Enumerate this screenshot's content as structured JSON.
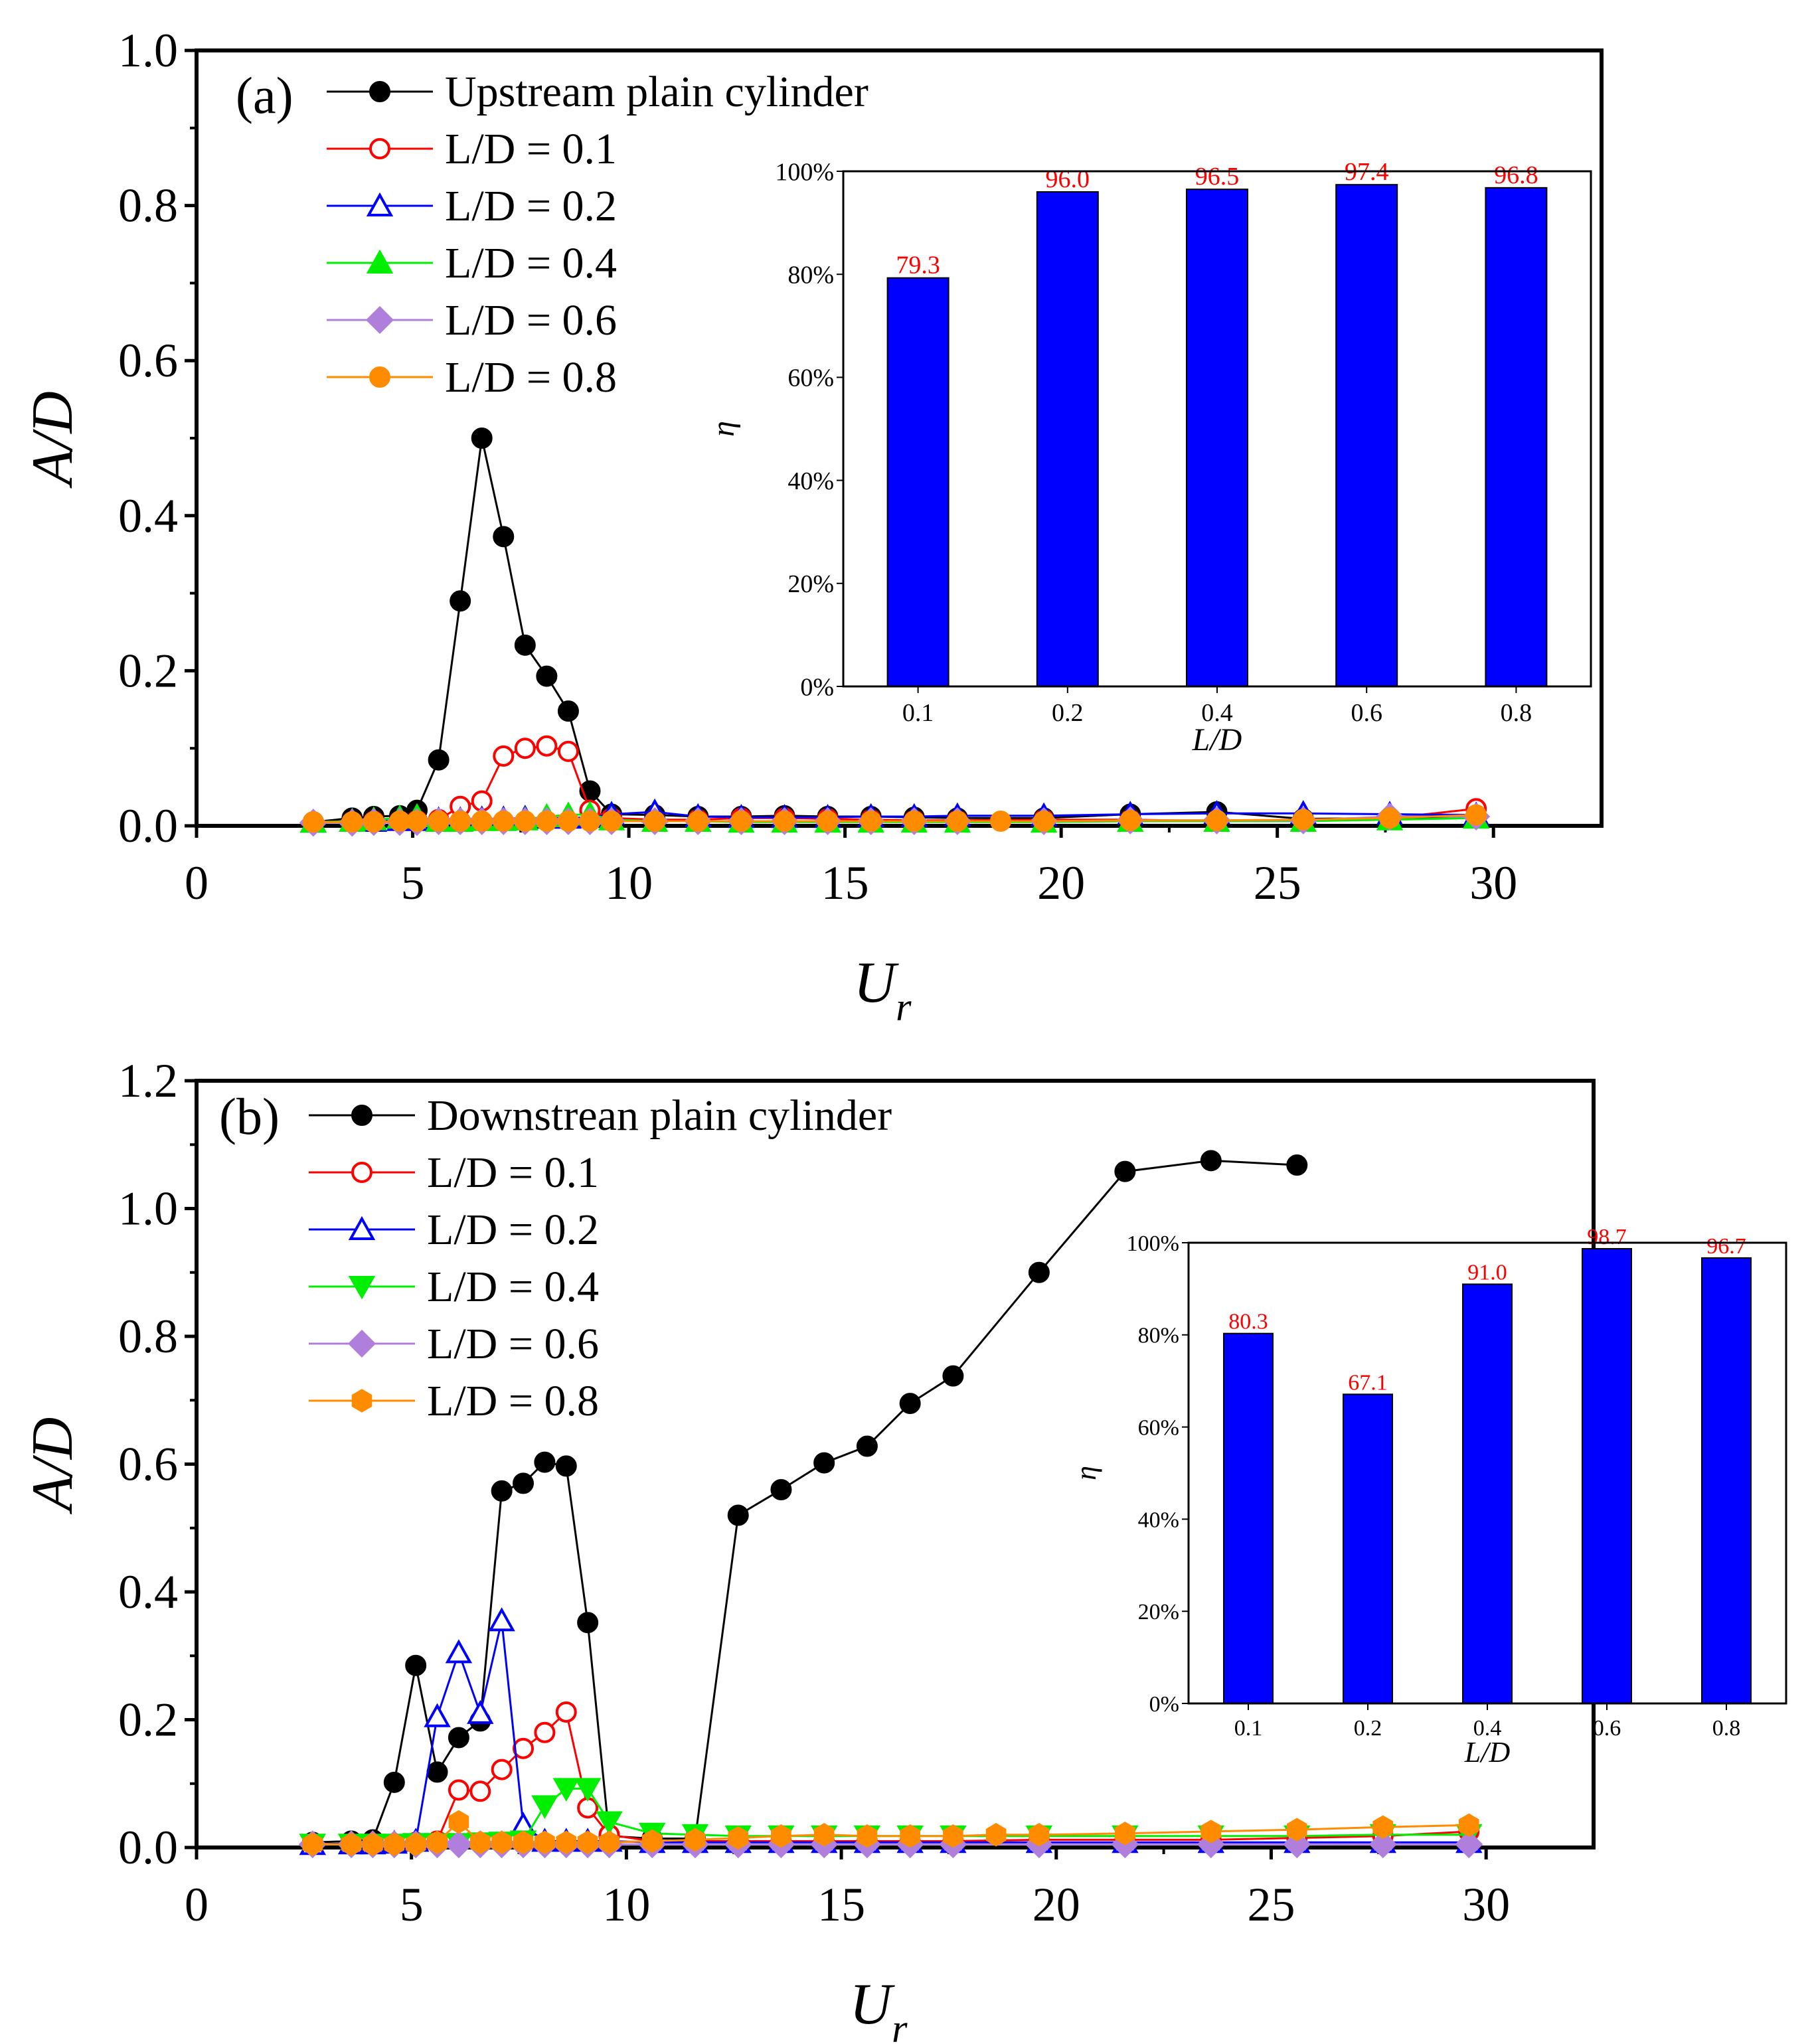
{
  "colors": {
    "plain": "#000000",
    "ld01": "#ff0000",
    "ld02": "#0000ff",
    "ld04": "#00ee00",
    "ld06": "#b07fdc",
    "ld08": "#ff8c00",
    "bar": "#0000ff",
    "barlabel": "#ff0000"
  },
  "chart_data": [
    {
      "id": "a",
      "type": "line",
      "panel_label": "(a)",
      "xlabel": "U",
      "xlabel_sub": "r",
      "ylabel": "A/D",
      "xlim": [
        0,
        32.5
      ],
      "ylim": [
        0,
        1.0
      ],
      "xticks": [
        "0",
        "5",
        "10",
        "15",
        "20",
        "25",
        "30"
      ],
      "yticks": [
        "0.0",
        "0.2",
        "0.4",
        "0.6",
        "0.8",
        "1.0"
      ],
      "series": [
        {
          "key": "plain",
          "name": "Upstream plain cylinder",
          "marker": "circle-filled",
          "color": "#000000",
          "x": [
            2.7,
            3.6,
            4.1,
            4.7,
            5.1,
            5.6,
            6.1,
            6.6,
            7.1,
            7.6,
            8.1,
            8.6,
            9.1,
            9.6,
            10.6,
            11.6,
            12.6,
            13.6,
            14.6,
            15.6,
            16.6,
            17.6,
            19.6,
            21.6,
            23.6,
            25.6,
            27.6,
            29.6
          ],
          "y": [
            0.005,
            0.01,
            0.012,
            0.013,
            0.02,
            0.085,
            0.29,
            0.5,
            0.373,
            0.233,
            0.193,
            0.148,
            0.045,
            0.015,
            0.014,
            0.012,
            0.012,
            0.013,
            0.012,
            0.012,
            0.011,
            0.01,
            0.01,
            0.015,
            0.018,
            0.009,
            0.01,
            0.012
          ]
        },
        {
          "key": "ld01",
          "name": "L/D = 0.1",
          "marker": "circle-open",
          "color": "#ff0000",
          "x": [
            2.7,
            3.6,
            4.1,
            4.7,
            5.1,
            5.6,
            6.1,
            6.6,
            7.1,
            7.6,
            8.1,
            8.6,
            9.1,
            9.6,
            10.6,
            11.6,
            12.6,
            13.6,
            14.6,
            15.6,
            16.6,
            17.6,
            19.6,
            21.6,
            23.6,
            25.6,
            27.6,
            29.6
          ],
          "y": [
            0.005,
            0.005,
            0.006,
            0.006,
            0.007,
            0.008,
            0.025,
            0.032,
            0.09,
            0.1,
            0.103,
            0.096,
            0.02,
            0.01,
            0.008,
            0.008,
            0.01,
            0.01,
            0.009,
            0.008,
            0.007,
            0.007,
            0.008,
            0.008,
            0.006,
            0.007,
            0.01,
            0.022
          ]
        },
        {
          "key": "ld02",
          "name": "L/D = 0.2",
          "marker": "triangle-open",
          "color": "#0000ff",
          "x": [
            2.7,
            3.6,
            4.1,
            4.7,
            5.1,
            5.6,
            6.1,
            6.6,
            7.1,
            7.6,
            8.1,
            8.6,
            9.1,
            9.6,
            10.6,
            11.6,
            12.6,
            13.6,
            14.6,
            15.6,
            16.6,
            17.6,
            19.6,
            21.6,
            23.6,
            25.6,
            27.6,
            29.6
          ],
          "y": [
            0.005,
            0.006,
            0.006,
            0.007,
            0.007,
            0.008,
            0.008,
            0.009,
            0.009,
            0.01,
            0.01,
            0.01,
            0.011,
            0.015,
            0.018,
            0.012,
            0.011,
            0.011,
            0.011,
            0.012,
            0.012,
            0.013,
            0.013,
            0.015,
            0.016,
            0.016,
            0.015,
            0.014
          ]
        },
        {
          "key": "ld04",
          "name": "L/D = 0.4",
          "marker": "triangle-filled",
          "color": "#00ee00",
          "x": [
            2.7,
            3.6,
            4.1,
            4.7,
            5.1,
            5.6,
            6.1,
            6.6,
            7.1,
            7.6,
            8.1,
            8.6,
            9.1,
            9.6,
            10.6,
            11.6,
            12.6,
            13.6,
            14.6,
            15.6,
            16.6,
            17.6,
            19.6,
            21.6,
            23.6,
            25.6,
            27.6,
            29.6
          ],
          "y": [
            0.005,
            0.006,
            0.008,
            0.01,
            0.012,
            0.006,
            0.006,
            0.007,
            0.007,
            0.008,
            0.012,
            0.014,
            0.015,
            0.008,
            0.006,
            0.006,
            0.005,
            0.005,
            0.005,
            0.005,
            0.005,
            0.005,
            0.005,
            0.006,
            0.006,
            0.006,
            0.008,
            0.01
          ]
        },
        {
          "key": "ld06",
          "name": "L/D = 0.6",
          "marker": "diamond-filled",
          "color": "#b07fdc",
          "x": [
            2.7,
            3.6,
            4.1,
            4.7,
            5.1,
            5.6,
            6.1,
            6.6,
            7.1,
            7.6,
            8.1,
            8.6,
            9.1,
            9.6,
            10.6,
            11.6,
            12.6,
            13.6,
            14.6,
            15.6,
            16.6,
            17.6,
            19.6,
            21.6,
            23.6,
            25.6,
            27.6,
            29.6
          ],
          "y": [
            0.004,
            0.004,
            0.005,
            0.005,
            0.005,
            0.006,
            0.006,
            0.006,
            0.006,
            0.006,
            0.006,
            0.006,
            0.006,
            0.006,
            0.006,
            0.006,
            0.006,
            0.006,
            0.006,
            0.006,
            0.006,
            0.006,
            0.006,
            0.007,
            0.007,
            0.007,
            0.012,
            0.012
          ]
        },
        {
          "key": "ld08",
          "name": "L/D = 0.8",
          "marker": "circle-filled",
          "color": "#ff8c00",
          "x": [
            2.7,
            3.6,
            4.1,
            4.7,
            5.1,
            5.6,
            6.1,
            6.6,
            7.1,
            7.6,
            8.1,
            8.6,
            9.1,
            9.6,
            10.6,
            11.6,
            12.6,
            13.6,
            14.6,
            15.6,
            16.6,
            17.6,
            18.6,
            19.6,
            21.6,
            23.6,
            25.6,
            27.6,
            29.6
          ],
          "y": [
            0.005,
            0.005,
            0.005,
            0.006,
            0.006,
            0.006,
            0.006,
            0.006,
            0.006,
            0.006,
            0.006,
            0.006,
            0.006,
            0.006,
            0.006,
            0.006,
            0.006,
            0.006,
            0.006,
            0.006,
            0.006,
            0.006,
            0.006,
            0.006,
            0.007,
            0.007,
            0.008,
            0.01,
            0.014
          ]
        }
      ],
      "inset": {
        "type": "bar",
        "ylabel": "η",
        "xlabel": "L/D",
        "categories": [
          "0.1",
          "0.2",
          "0.4",
          "0.6",
          "0.8"
        ],
        "values": [
          79.3,
          96.0,
          96.5,
          97.4,
          96.8
        ],
        "value_labels": [
          "79.3",
          "96.0",
          "96.5",
          "97.4",
          "96.8"
        ],
        "ylim": [
          0,
          100
        ],
        "yticks": [
          "0%",
          "20%",
          "40%",
          "60%",
          "80%",
          "100%"
        ]
      }
    },
    {
      "id": "b",
      "type": "line",
      "panel_label": "(b)",
      "xlabel": "U",
      "xlabel_sub": "r",
      "ylabel": "A/D",
      "xlim": [
        0,
        32.5
      ],
      "ylim": [
        0,
        1.2
      ],
      "xticks": [
        "0",
        "5",
        "10",
        "15",
        "20",
        "25",
        "30"
      ],
      "yticks": [
        "0.0",
        "0.2",
        "0.4",
        "0.6",
        "0.8",
        "1.0",
        "1.2"
      ],
      "series": [
        {
          "key": "plain",
          "name": "Downstrean plain cylinder",
          "marker": "circle-filled",
          "color": "#000000",
          "x": [
            2.7,
            3.6,
            4.1,
            4.6,
            5.1,
            5.6,
            6.1,
            6.6,
            7.1,
            7.6,
            8.1,
            8.6,
            9.1,
            9.6,
            10.6,
            11.6,
            12.6,
            13.6,
            14.6,
            15.6,
            16.6,
            17.6,
            19.6,
            21.6,
            23.6,
            25.6
          ],
          "y": [
            0.008,
            0.01,
            0.012,
            0.102,
            0.285,
            0.118,
            0.172,
            0.198,
            0.558,
            0.57,
            0.603,
            0.597,
            0.352,
            0.018,
            0.014,
            0.014,
            0.52,
            0.56,
            0.602,
            0.628,
            0.695,
            0.738,
            0.9,
            1.058,
            1.075,
            1.068
          ]
        },
        {
          "key": "ld01",
          "name": "L/D = 0.1",
          "marker": "circle-open",
          "color": "#ff0000",
          "x": [
            2.7,
            3.6,
            4.1,
            4.6,
            5.1,
            5.6,
            6.1,
            6.6,
            7.1,
            7.6,
            8.1,
            8.6,
            9.1,
            9.6,
            10.6,
            11.6,
            12.6,
            13.6,
            14.6,
            15.6,
            16.6,
            17.6,
            19.6,
            21.6,
            23.6,
            25.6,
            27.6,
            29.6
          ],
          "y": [
            0.005,
            0.006,
            0.006,
            0.006,
            0.008,
            0.01,
            0.09,
            0.088,
            0.122,
            0.155,
            0.18,
            0.212,
            0.062,
            0.02,
            0.01,
            0.01,
            0.01,
            0.01,
            0.01,
            0.01,
            0.01,
            0.01,
            0.012,
            0.012,
            0.012,
            0.015,
            0.018,
            0.025
          ]
        },
        {
          "key": "ld02",
          "name": "L/D = 0.2",
          "marker": "triangle-open",
          "color": "#0000ff",
          "x": [
            2.7,
            3.6,
            4.1,
            4.6,
            5.1,
            5.6,
            6.1,
            6.6,
            7.1,
            7.6,
            8.1,
            8.6,
            9.1,
            9.6,
            10.6,
            11.6,
            12.6,
            13.6,
            14.6,
            15.6,
            16.6,
            17.6,
            19.6,
            21.6,
            23.6,
            25.6,
            27.6,
            29.6
          ],
          "y": [
            0.005,
            0.006,
            0.006,
            0.007,
            0.01,
            0.205,
            0.305,
            0.21,
            0.355,
            0.035,
            0.01,
            0.01,
            0.01,
            0.01,
            0.008,
            0.008,
            0.008,
            0.008,
            0.008,
            0.008,
            0.008,
            0.008,
            0.008,
            0.008,
            0.008,
            0.008,
            0.008,
            0.008
          ]
        },
        {
          "key": "ld04",
          "name": "L/D = 0.4",
          "marker": "triangle-down-filled",
          "color": "#00ee00",
          "x": [
            2.7,
            3.6,
            4.1,
            4.6,
            5.1,
            5.6,
            6.1,
            6.6,
            7.1,
            7.6,
            8.1,
            8.6,
            9.1,
            9.6,
            10.6,
            11.6,
            12.6,
            13.6,
            14.6,
            15.6,
            16.6,
            17.6,
            19.6,
            21.6,
            23.6,
            25.6,
            27.6,
            29.6
          ],
          "y": [
            0.005,
            0.005,
            0.005,
            0.005,
            0.006,
            0.006,
            0.006,
            0.007,
            0.008,
            0.01,
            0.065,
            0.092,
            0.092,
            0.04,
            0.022,
            0.02,
            0.018,
            0.018,
            0.018,
            0.018,
            0.018,
            0.018,
            0.018,
            0.018,
            0.018,
            0.018,
            0.02,
            0.02
          ]
        },
        {
          "key": "ld06",
          "name": "L/D = 0.6",
          "marker": "diamond-filled",
          "color": "#b07fdc",
          "x": [
            2.7,
            3.6,
            4.1,
            4.6,
            5.1,
            5.6,
            6.1,
            6.6,
            7.1,
            7.6,
            8.1,
            8.6,
            9.1,
            9.6,
            10.6,
            11.6,
            12.6,
            13.6,
            14.6,
            15.6,
            16.6,
            17.6,
            19.6,
            21.6,
            23.6,
            25.6,
            27.6,
            29.6
          ],
          "y": [
            0.005,
            0.005,
            0.005,
            0.005,
            0.005,
            0.005,
            0.005,
            0.005,
            0.005,
            0.005,
            0.005,
            0.005,
            0.005,
            0.005,
            0.005,
            0.005,
            0.005,
            0.005,
            0.005,
            0.005,
            0.005,
            0.005,
            0.005,
            0.005,
            0.005,
            0.005,
            0.005,
            0.005
          ]
        },
        {
          "key": "ld08",
          "name": "L/D = 0.8",
          "marker": "hexagon-filled",
          "color": "#ff8c00",
          "x": [
            2.7,
            3.6,
            4.1,
            4.6,
            5.1,
            5.6,
            6.1,
            6.6,
            7.1,
            7.6,
            8.1,
            8.6,
            9.1,
            9.6,
            10.6,
            11.6,
            12.6,
            13.6,
            14.6,
            15.6,
            16.6,
            17.6,
            18.6,
            19.6,
            21.6,
            23.6,
            25.6,
            27.6,
            29.6
          ],
          "y": [
            0.005,
            0.005,
            0.005,
            0.005,
            0.005,
            0.008,
            0.04,
            0.008,
            0.008,
            0.008,
            0.008,
            0.008,
            0.008,
            0.008,
            0.01,
            0.012,
            0.015,
            0.018,
            0.02,
            0.018,
            0.018,
            0.018,
            0.02,
            0.02,
            0.022,
            0.025,
            0.028,
            0.032,
            0.035
          ]
        }
      ],
      "inset": {
        "type": "bar",
        "ylabel": "η",
        "xlabel": "L/D",
        "categories": [
          "0.1",
          "0.2",
          "0.4",
          "0.6",
          "0.8"
        ],
        "values": [
          80.3,
          67.1,
          91.0,
          98.7,
          96.7
        ],
        "value_labels": [
          "80.3",
          "67.1",
          "91.0",
          "98.7",
          "96.7"
        ],
        "ylim": [
          0,
          100
        ],
        "yticks": [
          "0%",
          "20%",
          "40%",
          "60%",
          "80%",
          "100%"
        ]
      }
    }
  ]
}
